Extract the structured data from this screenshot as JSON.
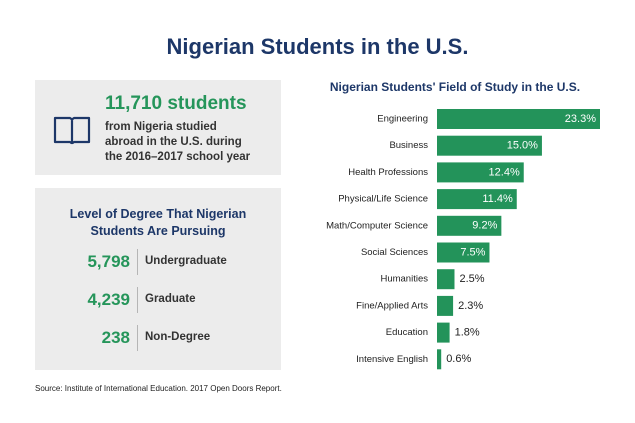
{
  "title": "Nigerian Students in the U.S.",
  "summary": {
    "count": "11,710 students",
    "text": "from Nigeria studied abroad in the U.S. during the 2016–2017 school year"
  },
  "degrees": {
    "heading": "Level of Degree That Nigerian Students Are Pursuing",
    "rows": [
      [
        "5,798",
        "Undergraduate"
      ],
      [
        "4,239",
        "Graduate"
      ],
      [
        "238",
        "Non-Degree"
      ]
    ]
  },
  "source": "Source: Institute of International Education. 2017 Open Doors Report.",
  "chart_data": {
    "type": "bar",
    "orientation": "horizontal",
    "title": "Nigerian Students' Field of Study in the U.S.",
    "categories": [
      "Engineering",
      "Business",
      "Health Professions",
      "Physical/Life Science",
      "Math/Computer Science",
      "Social Sciences",
      "Humanities",
      "Fine/Applied Arts",
      "Education",
      "Intensive English"
    ],
    "values": [
      23.3,
      15.0,
      12.4,
      11.4,
      9.2,
      7.5,
      2.5,
      2.3,
      1.8,
      0.6
    ],
    "value_labels": [
      "23.3%",
      "15.0%",
      "12.4%",
      "11.4%",
      "9.2%",
      "7.5%",
      "2.5%",
      "2.3%",
      "1.8%",
      "0.6%"
    ],
    "color": "#23935a"
  }
}
